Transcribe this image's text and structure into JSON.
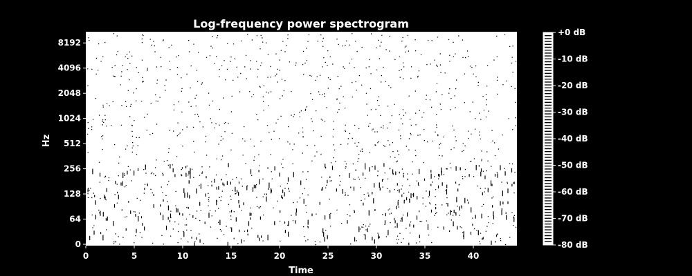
{
  "chart_data": {
    "type": "heatmap",
    "title": "Log-frequency power spectrogram",
    "xlabel": "Time",
    "ylabel": "Hz",
    "xlim": [
      0,
      44.5
    ],
    "x_ticks": [
      0,
      5,
      10,
      15,
      20,
      25,
      30,
      35,
      40
    ],
    "y_scale": "symlog",
    "y_ticks": [
      0,
      64,
      128,
      256,
      512,
      1024,
      2048,
      4096,
      8192
    ],
    "colorbar": {
      "label_ticks": [
        "+0 dB",
        "-10 dB",
        "-20 dB",
        "-30 dB",
        "-40 dB",
        "-50 dB",
        "-60 dB",
        "-70 dB",
        "-80 dB"
      ],
      "range": [
        -80,
        0
      ]
    },
    "colors": {
      "background": "#000000",
      "plot_fill": "#ffffff",
      "speckle": "#000000",
      "text": "#ffffff"
    },
    "grid": false,
    "legend": "none"
  }
}
